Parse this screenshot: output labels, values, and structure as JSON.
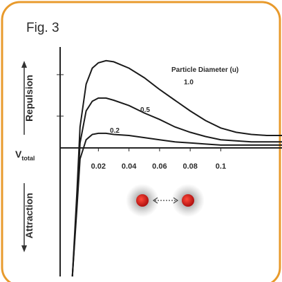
{
  "chart_data": {
    "type": "line",
    "title": "Fig. 3",
    "annotation": "Particle Diameter (u)",
    "ylabel": "V",
    "ylabel_subscript": "total",
    "repulsion_label": "Repulsion",
    "attraction_label": "Attraction",
    "x": [
      0.003,
      0.006,
      0.008,
      0.012,
      0.016,
      0.02,
      0.025,
      0.03,
      0.04,
      0.05,
      0.06,
      0.07,
      0.08,
      0.09,
      0.1,
      0.11,
      0.12,
      0.13,
      0.14
    ],
    "series": [
      {
        "name": "1.0",
        "color": "#1a1a1a",
        "values": [
          -1.2,
          -0.4,
          0.2,
          0.6,
          0.75,
          0.8,
          0.82,
          0.81,
          0.75,
          0.66,
          0.55,
          0.45,
          0.35,
          0.26,
          0.19,
          0.15,
          0.13,
          0.12,
          0.12
        ]
      },
      {
        "name": "0.5",
        "color": "#1a1a1a",
        "values": [
          -1.2,
          -0.5,
          0.05,
          0.35,
          0.44,
          0.47,
          0.47,
          0.45,
          0.4,
          0.33,
          0.27,
          0.2,
          0.15,
          0.11,
          0.08,
          0.07,
          0.06,
          0.06,
          0.06
        ]
      },
      {
        "name": "0.2",
        "color": "#1a1a1a",
        "values": [
          -1.2,
          -0.55,
          -0.1,
          0.08,
          0.13,
          0.14,
          0.14,
          0.13,
          0.12,
          0.1,
          0.08,
          0.06,
          0.05,
          0.04,
          0.03,
          0.03,
          0.03,
          0.03,
          0.03
        ]
      }
    ],
    "xlim": [
      -0.005,
      0.14
    ],
    "xticks": [
      0.02,
      0.04,
      0.06,
      0.08,
      0.1
    ],
    "ylim": [
      -1.2,
      1
    ]
  }
}
